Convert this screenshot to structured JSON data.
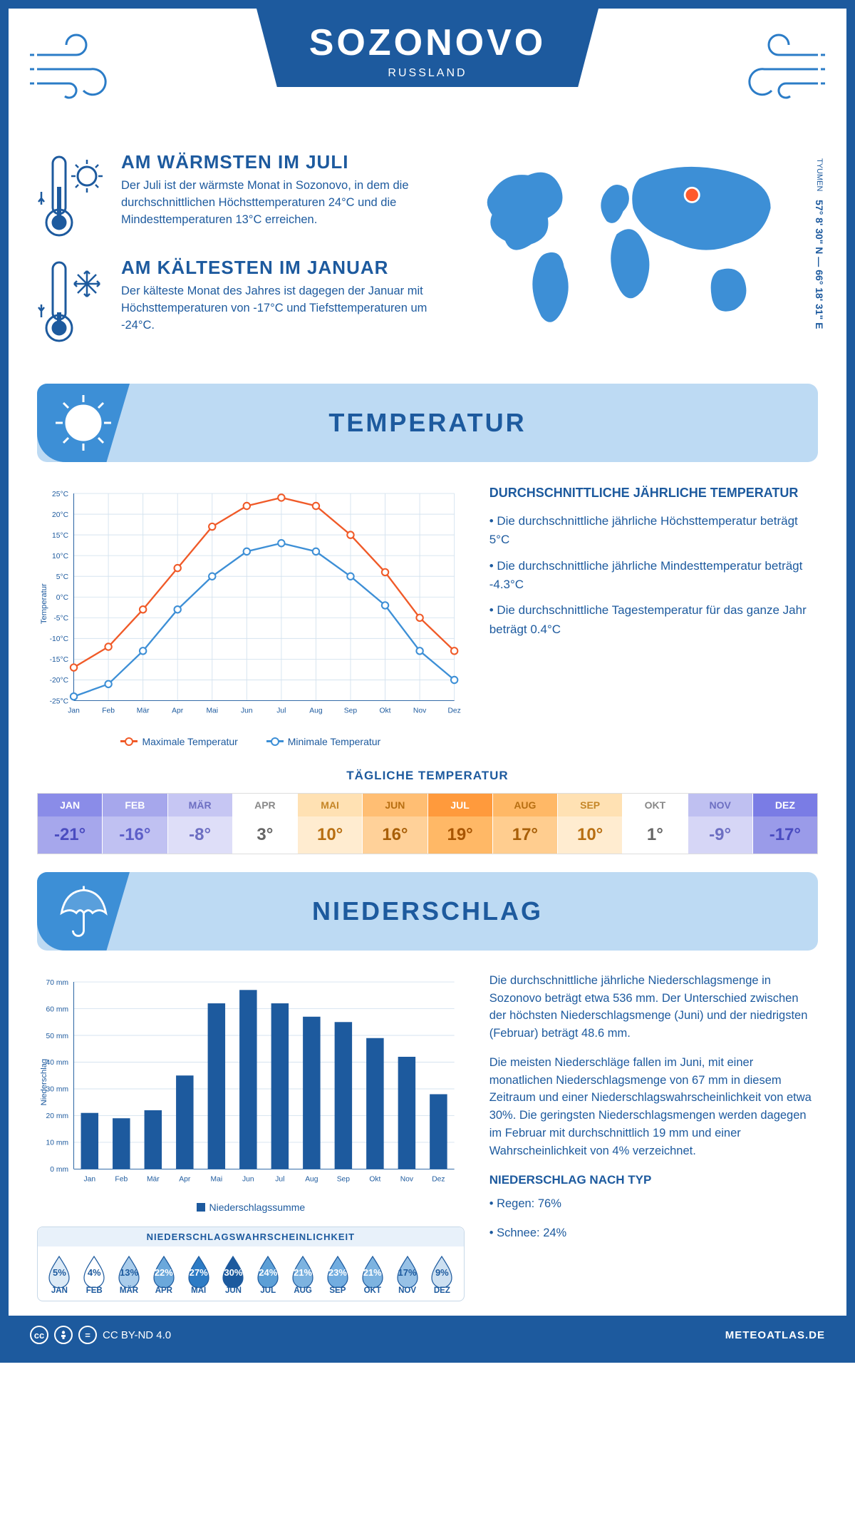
{
  "header": {
    "city": "SOZONOVO",
    "country": "RUSSLAND"
  },
  "coords": {
    "lat": "57° 8' 30\" N",
    "lon": "66° 18' 31\" E",
    "region": "TYUMEN"
  },
  "colors": {
    "primary": "#1d5a9e",
    "accent": "#3d8fd6",
    "light": "#bddaf3",
    "max_line": "#f05a28",
    "min_line": "#3d8fd6",
    "grid": "#d5e3ef",
    "marker": "#ff5a2c"
  },
  "facts": {
    "warm": {
      "title": "AM WÄRMSTEN IM JULI",
      "text": "Der Juli ist der wärmste Monat in Sozonovo, in dem die durchschnittlichen Höchsttemperaturen 24°C und die Mindesttemperaturen 13°C erreichen."
    },
    "cold": {
      "title": "AM KÄLTESTEN IM JANUAR",
      "text": "Der kälteste Monat des Jahres ist dagegen der Januar mit Höchsttemperaturen von -17°C und Tiefsttemperaturen um -24°C."
    }
  },
  "temperature": {
    "section_title": "TEMPERATUR",
    "chart": {
      "type": "line",
      "months": [
        "Jan",
        "Feb",
        "Mär",
        "Apr",
        "Mai",
        "Jun",
        "Jul",
        "Aug",
        "Sep",
        "Okt",
        "Nov",
        "Dez"
      ],
      "max": [
        -17,
        -12,
        -3,
        7,
        17,
        22,
        24,
        22,
        15,
        6,
        -5,
        -13
      ],
      "min": [
        -24,
        -21,
        -13,
        -3,
        5,
        11,
        13,
        11,
        5,
        -2,
        -13,
        -20
      ],
      "ylim": [
        -25,
        25
      ],
      "ytick_step": 5,
      "y_axis_label": "Temperatur",
      "max_color": "#f05a28",
      "min_color": "#3d8fd6",
      "grid_color": "#d5e3ef",
      "line_width": 2.5,
      "marker_size": 5,
      "legend_max": "Maximale Temperatur",
      "legend_min": "Minimale Temperatur"
    },
    "summary": {
      "title": "DURCHSCHNITTLICHE JÄHRLICHE TEMPERATUR",
      "p1": "• Die durchschnittliche jährliche Höchsttemperatur beträgt 5°C",
      "p2": "• Die durchschnittliche jährliche Mindesttemperatur beträgt -4.3°C",
      "p3": "• Die durchschnittliche Tagestemperatur für das ganze Jahr beträgt 0.4°C"
    },
    "daily": {
      "title": "TÄGLICHE TEMPERATUR",
      "months": [
        "JAN",
        "FEB",
        "MÄR",
        "APR",
        "MAI",
        "JUN",
        "JUL",
        "AUG",
        "SEP",
        "OKT",
        "NOV",
        "DEZ"
      ],
      "values": [
        "-21°",
        "-16°",
        "-8°",
        "3°",
        "10°",
        "16°",
        "19°",
        "17°",
        "10°",
        "1°",
        "-9°",
        "-17°"
      ],
      "head_colors": [
        "#8a8ce8",
        "#a6a7ec",
        "#c6c6f3",
        "#ffffff",
        "#ffe1b3",
        "#ffbe73",
        "#ff9a3c",
        "#ffb866",
        "#ffe1b3",
        "#ffffff",
        "#bfc0f1",
        "#7a7ce5"
      ],
      "val_colors": [
        "#a6a7ec",
        "#c0c1f2",
        "#dedef8",
        "#ffffff",
        "#ffecd0",
        "#ffd199",
        "#ffb866",
        "#ffcd8f",
        "#ffecd0",
        "#ffffff",
        "#d6d6f6",
        "#9a9be9"
      ],
      "head_text_colors": [
        "#ffffff",
        "#ffffff",
        "#6d6fc2",
        "#888888",
        "#c58627",
        "#b86f12",
        "#ffffff",
        "#b86f12",
        "#c58627",
        "#888888",
        "#6d6fc2",
        "#ffffff"
      ],
      "val_text_colors": [
        "#4a4cc0",
        "#5d5fc8",
        "#6d6fc2",
        "#666666",
        "#b86f12",
        "#a85f08",
        "#a85502",
        "#a85f08",
        "#b86f12",
        "#666666",
        "#6d6fc2",
        "#4a4cc0"
      ]
    }
  },
  "precip": {
    "section_title": "NIEDERSCHLAG",
    "chart": {
      "type": "bar",
      "months": [
        "Jan",
        "Feb",
        "Mär",
        "Apr",
        "Mai",
        "Jun",
        "Jul",
        "Aug",
        "Sep",
        "Okt",
        "Nov",
        "Dez"
      ],
      "values": [
        21,
        19,
        22,
        35,
        62,
        67,
        62,
        57,
        55,
        49,
        42,
        28
      ],
      "ylim": [
        0,
        70
      ],
      "ytick_step": 10,
      "y_axis_label": "Niederschlag",
      "bar_color": "#1d5a9e",
      "grid_color": "#d5e3ef",
      "bar_width": 0.55,
      "legend": "Niederschlagssumme"
    },
    "text": {
      "p1": "Die durchschnittliche jährliche Niederschlagsmenge in Sozonovo beträgt etwa 536 mm. Der Unterschied zwischen der höchsten Niederschlagsmenge (Juni) und der niedrigsten (Februar) beträgt 48.6 mm.",
      "p2": "Die meisten Niederschläge fallen im Juni, mit einer monatlichen Niederschlagsmenge von 67 mm in diesem Zeitraum und einer Niederschlagswahrscheinlichkeit von etwa 30%. Die geringsten Niederschlagsmengen werden dagegen im Februar mit durchschnittlich 19 mm und einer Wahrscheinlichkeit von 4% verzeichnet.",
      "h3": "NIEDERSCHLAG NACH TYP",
      "l1": "• Regen: 76%",
      "l2": "• Schnee: 24%"
    },
    "probability": {
      "title": "NIEDERSCHLAGSWAHRSCHEINLICHKEIT",
      "months": [
        "JAN",
        "FEB",
        "MÄR",
        "APR",
        "MAI",
        "JUN",
        "JUL",
        "AUG",
        "SEP",
        "OKT",
        "NOV",
        "DEZ"
      ],
      "values": [
        "5%",
        "4%",
        "13%",
        "22%",
        "27%",
        "30%",
        "24%",
        "21%",
        "23%",
        "21%",
        "17%",
        "9%"
      ],
      "fills": [
        "#dceaf6",
        "#ffffff",
        "#a9cceb",
        "#6ba8db",
        "#2d7bc4",
        "#1d5a9e",
        "#5c9fd6",
        "#7db3e0",
        "#72ade0",
        "#7db3e0",
        "#97c1e6",
        "#cde0f1"
      ],
      "text_colors": [
        "#1d5a9e",
        "#1d5a9e",
        "#1d5a9e",
        "#ffffff",
        "#ffffff",
        "#ffffff",
        "#ffffff",
        "#ffffff",
        "#ffffff",
        "#ffffff",
        "#1d5a9e",
        "#1d5a9e"
      ]
    }
  },
  "footer": {
    "license": "CC BY-ND 4.0",
    "brand": "METEOATLAS.DE"
  }
}
